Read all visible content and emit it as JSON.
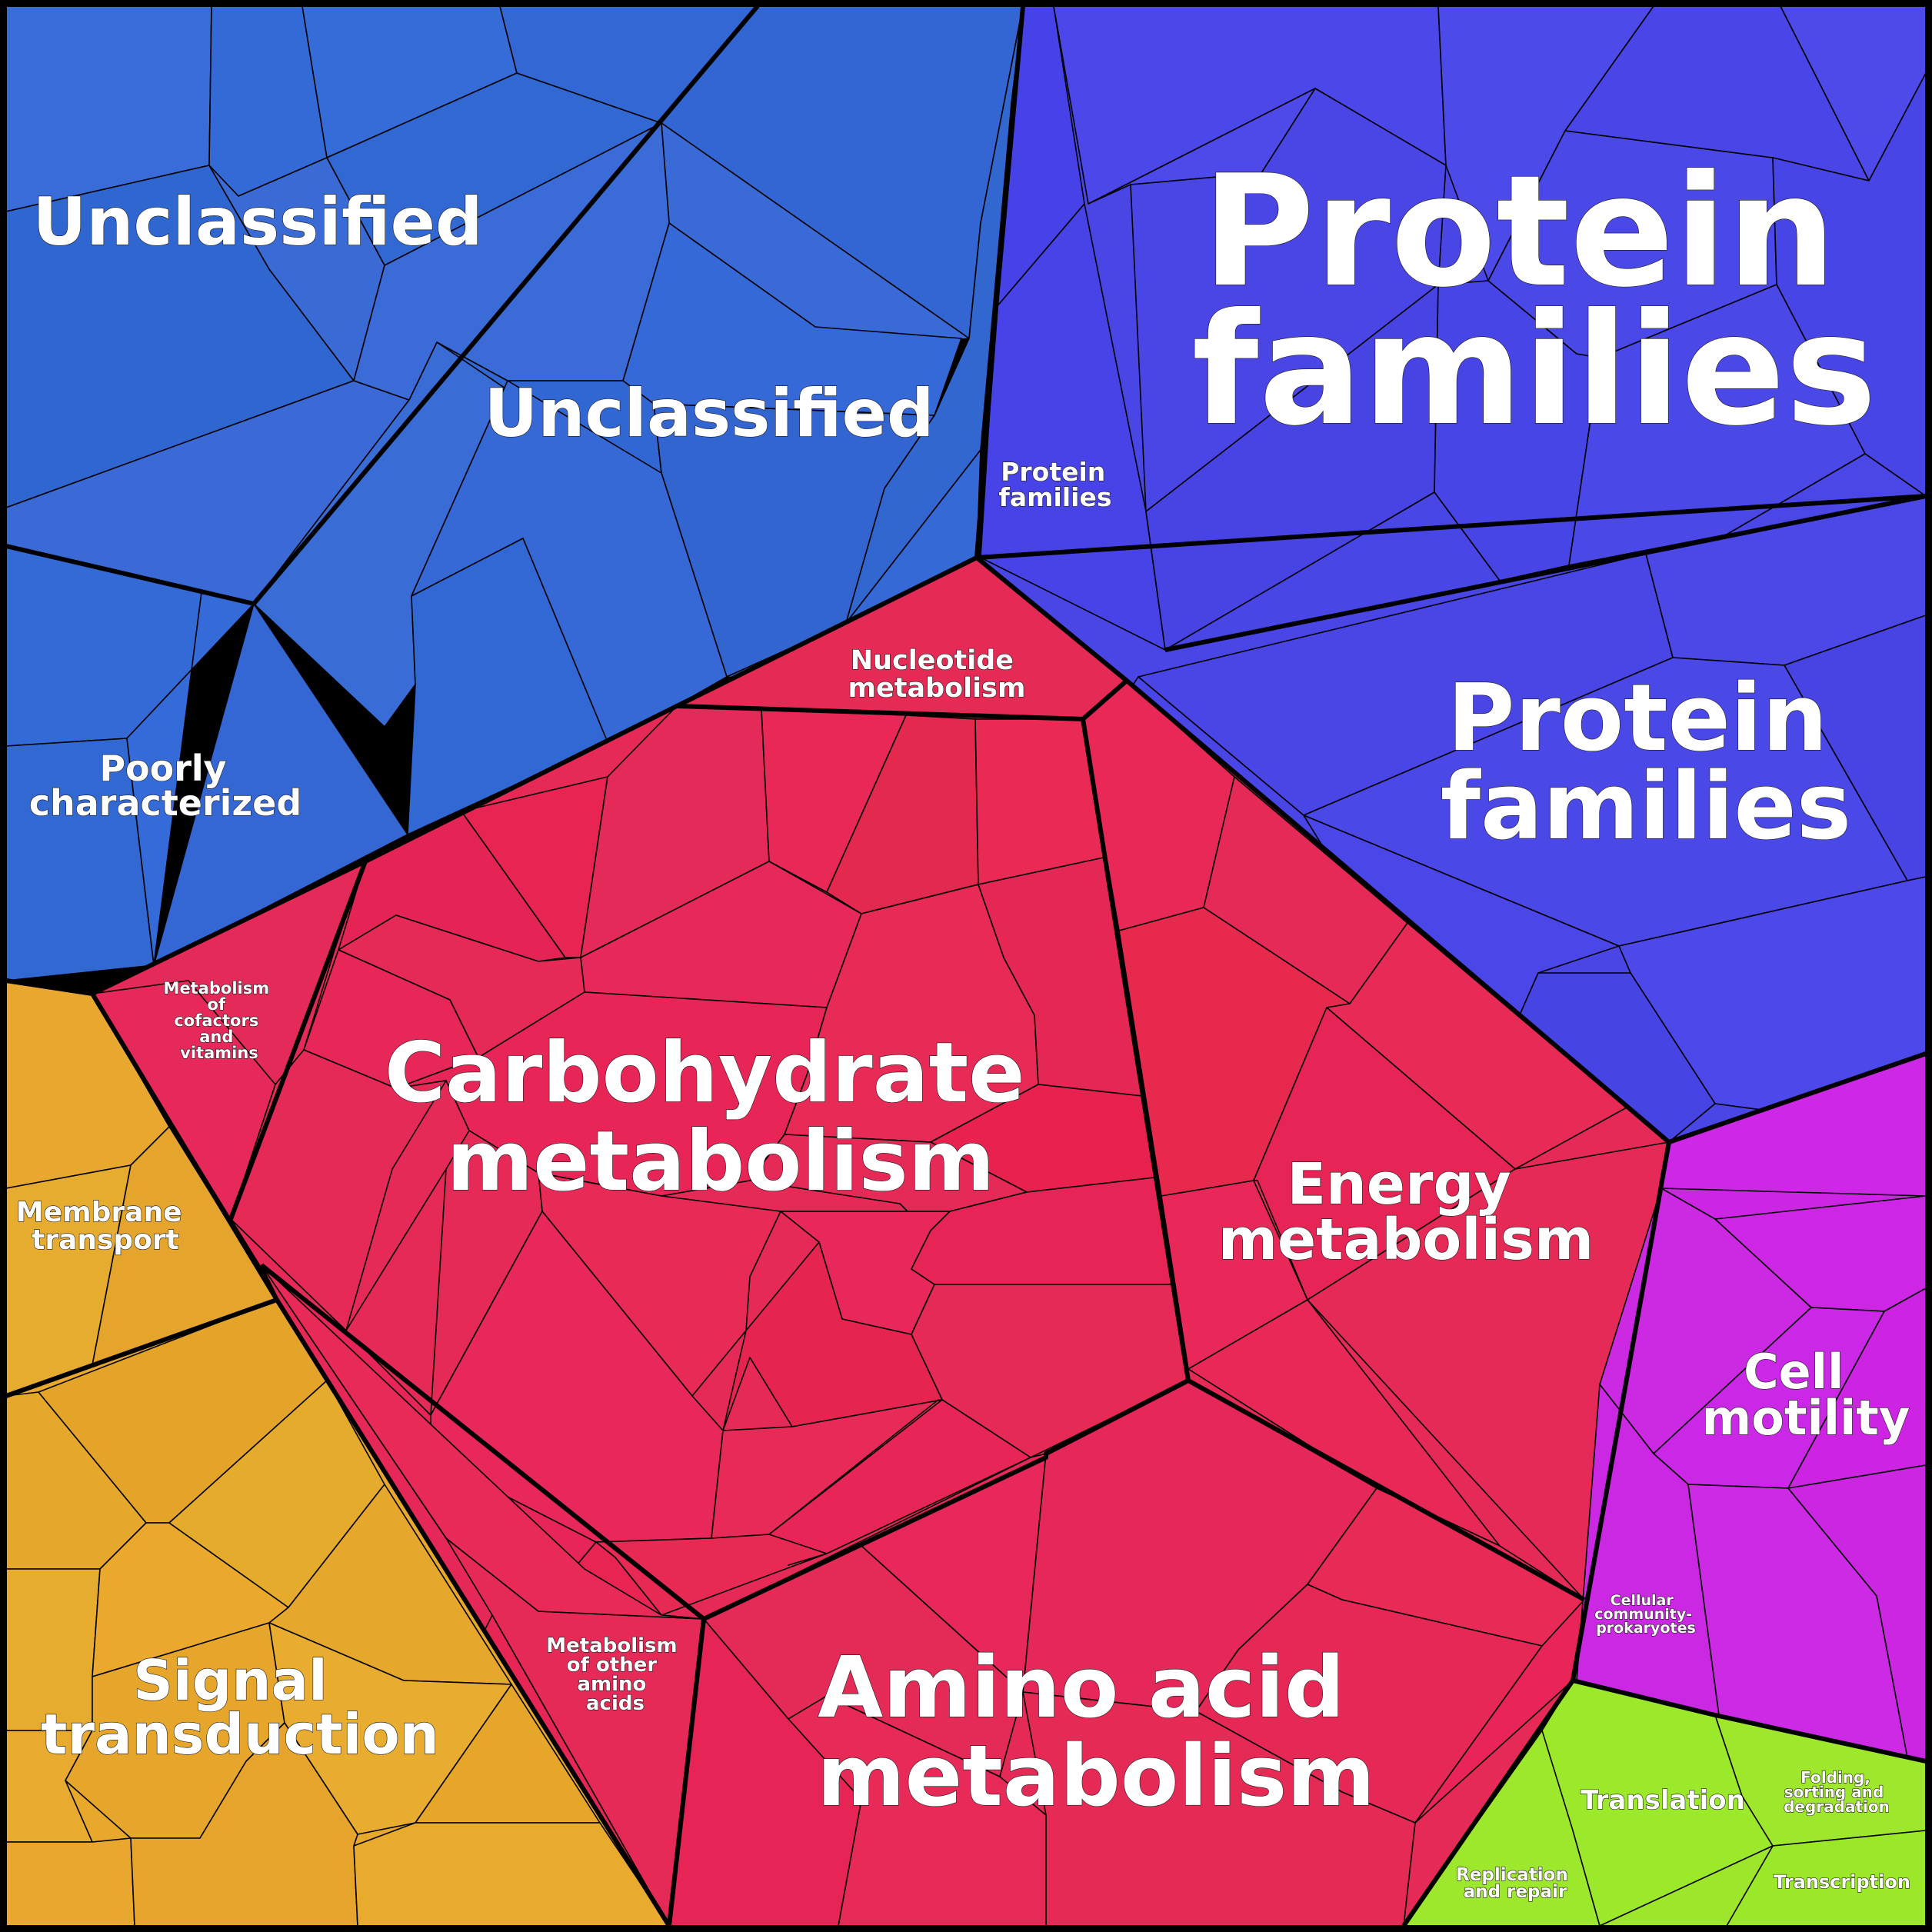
{
  "diagram": {
    "type": "voronoi-treemap",
    "colors": {
      "unclassified": "#3468d4",
      "poorly_characterized": "#356bd9",
      "protein_families": "#4b46e6",
      "metabolism": "#e52a57",
      "cellular_processes": "#cc26e4",
      "environmental": "#e8a82c",
      "genetic_info": "#9de82a"
    },
    "labels": {
      "unclassified_1": [
        "Unclassified"
      ],
      "unclassified_2": [
        "Unclassified"
      ],
      "poorly_characterized": [
        "Poorly",
        "characterized"
      ],
      "protein_families_large": [
        "Protein",
        "families"
      ],
      "protein_families_mid": [
        "Protein",
        "families"
      ],
      "protein_families_small": [
        "Protein",
        "families"
      ],
      "nucleotide_metabolism": [
        "Nucleotide",
        "metabolism"
      ],
      "metabolism_cofactors": [
        "Metabolism",
        "of",
        "cofactors",
        "and",
        "vitamins"
      ],
      "carbohydrate_metabolism": [
        "Carbohydrate",
        "metabolism"
      ],
      "energy_metabolism": [
        "Energy",
        "metabolism"
      ],
      "amino_acid_metabolism": [
        "Amino acid",
        "metabolism"
      ],
      "metabolism_other_amino_acids": [
        "Metabolism",
        "of other",
        "amino",
        "acids"
      ],
      "membrane_transport": [
        "Membrane",
        "transport"
      ],
      "signal_transduction": [
        "Signal",
        "transduction"
      ],
      "cell_motility": [
        "Cell",
        "motility"
      ],
      "cellular_community": [
        "Cellular",
        "community-",
        "prokaryotes"
      ],
      "translation": [
        "Translation"
      ],
      "folding": [
        "Folding,",
        "sorting and",
        "degradation"
      ],
      "replication": [
        "Replication",
        "and repair"
      ],
      "transcription": [
        "Transcription"
      ]
    }
  }
}
